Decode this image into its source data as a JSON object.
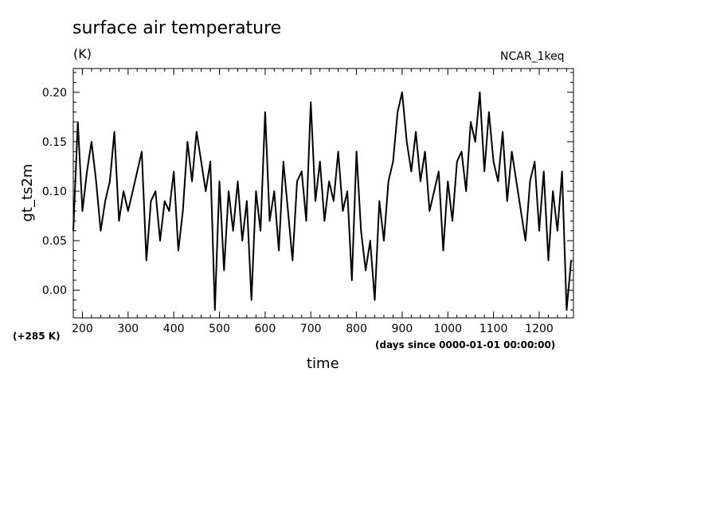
{
  "chart_data": {
    "type": "line",
    "title": "surface air temperature",
    "units": "(K)",
    "source_label": "NCAR_1keq",
    "ylabel": "gt_ts2m",
    "xlabel": "time",
    "x_units_note": "(days since 0000-01-01 00:00:00)",
    "y_offset_note": "(+285 K)",
    "xlim": [
      180,
      1275
    ],
    "ylim": [
      -0.028,
      0.224
    ],
    "x_ticks": [
      200,
      300,
      400,
      500,
      600,
      700,
      800,
      900,
      1000,
      1100,
      1200
    ],
    "y_ticks": [
      0.0,
      0.05,
      0.1,
      0.15,
      0.2
    ],
    "y_tick_labels": [
      "0.00",
      "0.05",
      "0.10",
      "0.15",
      "0.20"
    ],
    "series": [
      {
        "color": "#000000",
        "x": [
          180,
          190,
          200,
          210,
          220,
          230,
          240,
          250,
          260,
          270,
          280,
          290,
          300,
          310,
          320,
          330,
          340,
          350,
          360,
          370,
          380,
          390,
          400,
          410,
          420,
          430,
          440,
          450,
          460,
          470,
          480,
          490,
          500,
          510,
          520,
          530,
          540,
          550,
          560,
          570,
          580,
          590,
          600,
          610,
          620,
          630,
          640,
          650,
          660,
          670,
          680,
          690,
          700,
          710,
          720,
          730,
          740,
          750,
          760,
          770,
          780,
          790,
          800,
          810,
          820,
          830,
          840,
          850,
          860,
          870,
          880,
          890,
          900,
          910,
          920,
          930,
          940,
          950,
          960,
          970,
          980,
          990,
          1000,
          1010,
          1020,
          1030,
          1040,
          1050,
          1060,
          1070,
          1080,
          1090,
          1100,
          1110,
          1120,
          1130,
          1140,
          1150,
          1160,
          1170,
          1180,
          1190,
          1200,
          1210,
          1220,
          1230,
          1240,
          1250,
          1260,
          1270
        ],
        "y": [
          0.06,
          0.17,
          0.08,
          0.12,
          0.15,
          0.11,
          0.06,
          0.09,
          0.11,
          0.16,
          0.07,
          0.1,
          0.08,
          0.1,
          0.12,
          0.14,
          0.03,
          0.09,
          0.1,
          0.05,
          0.09,
          0.08,
          0.12,
          0.04,
          0.08,
          0.15,
          0.11,
          0.16,
          0.13,
          0.1,
          0.13,
          -0.02,
          0.11,
          0.02,
          0.1,
          0.06,
          0.11,
          0.05,
          0.09,
          -0.01,
          0.1,
          0.06,
          0.18,
          0.07,
          0.1,
          0.04,
          0.13,
          0.08,
          0.03,
          0.11,
          0.12,
          0.07,
          0.19,
          0.09,
          0.13,
          0.07,
          0.11,
          0.09,
          0.14,
          0.08,
          0.1,
          0.01,
          0.14,
          0.06,
          0.02,
          0.05,
          -0.01,
          0.09,
          0.05,
          0.11,
          0.13,
          0.18,
          0.2,
          0.15,
          0.12,
          0.16,
          0.11,
          0.14,
          0.08,
          0.1,
          0.12,
          0.04,
          0.11,
          0.07,
          0.13,
          0.14,
          0.1,
          0.17,
          0.15,
          0.2,
          0.12,
          0.18,
          0.13,
          0.11,
          0.16,
          0.09,
          0.14,
          0.11,
          0.08,
          0.05,
          0.11,
          0.13,
          0.06,
          0.12,
          0.03,
          0.1,
          0.06,
          0.12,
          -0.02,
          0.03
        ]
      }
    ]
  }
}
